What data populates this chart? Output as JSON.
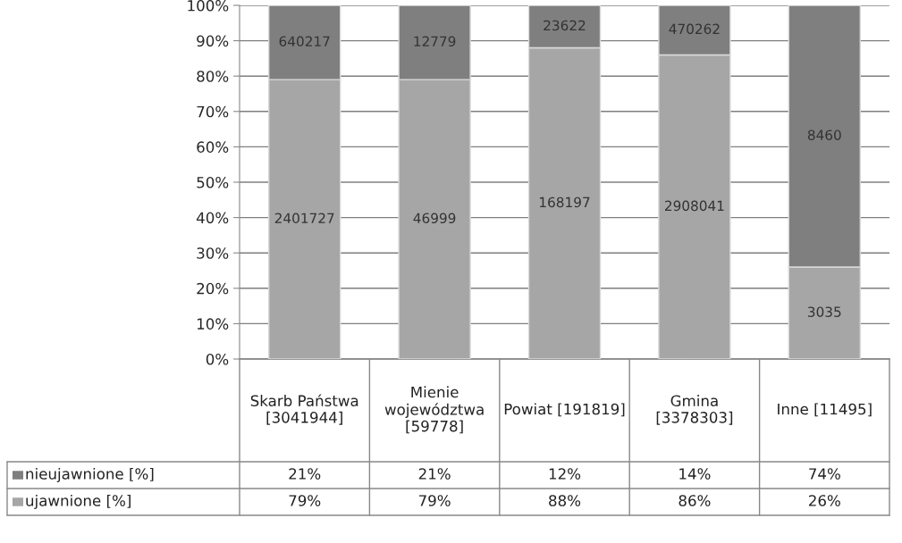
{
  "chart_data": {
    "type": "bar",
    "stacked": true,
    "categories": [
      "Skarb Państwa [3041944]",
      "Mienie województwa [59778]",
      "Powiat [191819]",
      "Gmina [3378303]",
      "Inne [11495]"
    ],
    "series": [
      {
        "name": "ujawnione [%]",
        "color": "#a6a6a6",
        "values": [
          79,
          79,
          88,
          86,
          26
        ],
        "value_labels": [
          "79%",
          "79%",
          "88%",
          "86%",
          "26%"
        ]
      },
      {
        "name": "nieujawnione [%]",
        "color": "#7f7f7f",
        "values": [
          21,
          21,
          12,
          14,
          74
        ],
        "value_labels": [
          "21%",
          "21%",
          "12%",
          "14%",
          "74%"
        ]
      }
    ],
    "ylim": [
      0,
      100
    ],
    "yticks": [
      {
        "value": 0,
        "label": "0%"
      },
      {
        "value": 10,
        "label": "10%"
      },
      {
        "value": 20,
        "label": "20%"
      },
      {
        "value": 30,
        "label": "30%"
      },
      {
        "value": 40,
        "label": "40%"
      },
      {
        "value": 50,
        "label": "50%"
      },
      {
        "value": 60,
        "label": "60%"
      },
      {
        "value": 70,
        "label": "70%"
      },
      {
        "value": 80,
        "label": "80%"
      },
      {
        "value": 90,
        "label": "90%"
      },
      {
        "value": 100,
        "label": "100%"
      }
    ],
    "grid": "y",
    "legend": "bottom",
    "annotations": [
      "2401727",
      "46999",
      "168197",
      "2908041",
      "3035",
      "640217",
      "12779",
      "23622",
      "470262",
      "8460"
    ]
  }
}
